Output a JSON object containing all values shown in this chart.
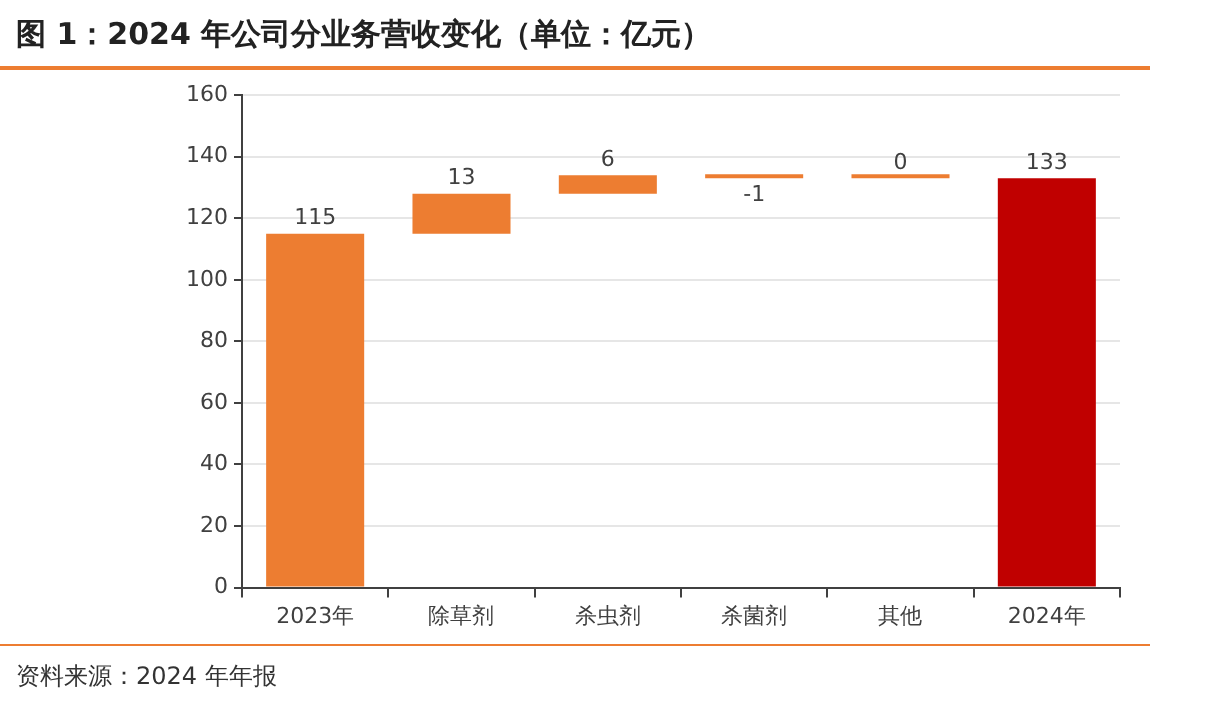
{
  "chart_data": {
    "type": "bar",
    "title": "图 1：2024 年公司分业务营收变化（单位：亿元）",
    "categories": [
      "2023年",
      "除草剂",
      "杀虫剂",
      "杀菌剂",
      "其他",
      "2024年"
    ],
    "values": [
      115,
      13,
      6,
      -1,
      0,
      133
    ],
    "base": [
      0,
      115,
      128,
      134,
      133,
      0
    ],
    "colors": [
      "#ed7d31",
      "#ed7d31",
      "#ed7d31",
      "#ed7d31",
      "#ed7d31",
      "#c00000"
    ],
    "ylim": [
      0,
      160
    ],
    "yticks": [
      0,
      20,
      40,
      60,
      80,
      100,
      120,
      140,
      160
    ],
    "grid": "y",
    "data_labels": true,
    "annotations": [
      "资料来源：2024 年年报"
    ]
  }
}
